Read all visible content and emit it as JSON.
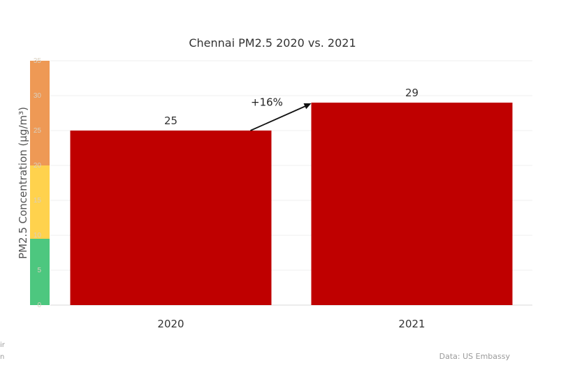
{
  "chart_data": {
    "type": "bar",
    "title": "Chennai PM2.5 2020 vs. 2021",
    "ylabel": "PM2.5 Concentration (µg/m³)",
    "xlabel": "",
    "categories": [
      "2020",
      "2021"
    ],
    "values": [
      25,
      29
    ],
    "data_labels": [
      "25",
      "29"
    ],
    "ylim": [
      0,
      35
    ],
    "yticks": [
      "0",
      "5",
      "10",
      "15",
      "20",
      "25",
      "30",
      "35"
    ],
    "grid": true,
    "legend": "none",
    "bar_color": "#bf0000",
    "aqi_bands": [
      {
        "from": 0,
        "to": 9.5,
        "color": "#4dc77f"
      },
      {
        "from": 9.5,
        "to": 20,
        "color": "#ffd24d"
      },
      {
        "from": 20,
        "to": 35,
        "color": "#ee9955"
      }
    ],
    "annotation": {
      "text": "+16%",
      "from_category": "2020",
      "to_category": "2021"
    }
  },
  "source": "Data: US Embassy",
  "clipped_left_text": [
    "ir",
    "n"
  ]
}
